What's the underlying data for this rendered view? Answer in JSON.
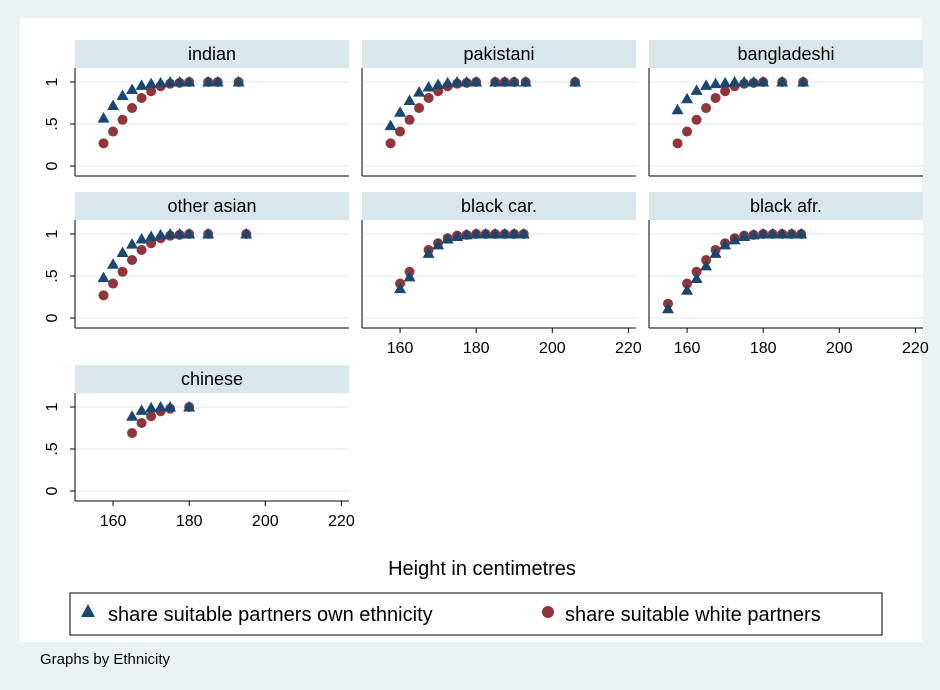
{
  "figure": {
    "x_axis_title": "Height in centimetres",
    "note": "Graphs by Ethnicity"
  },
  "colors": {
    "background": "#eaf2f3",
    "panel_header": "#d9e6eb",
    "own_ethnicity": "#1a476f",
    "white_partners": "#90353b",
    "grid": "#eaf2f3"
  },
  "chart_data": {
    "type": "scatter",
    "facet_by": "Ethnicity",
    "xlim": [
      150,
      222
    ],
    "ylim": [
      0,
      1
    ],
    "x_ticks": [
      160,
      180,
      200,
      220
    ],
    "y_ticks": [
      0,
      0.5,
      1
    ],
    "y_tick_labels": [
      "0",
      ".5",
      "1"
    ],
    "xlabel": "Height in centimetres",
    "ylabel": "",
    "grid": true,
    "legend": {
      "placement": "bottom",
      "entries": [
        {
          "key": "own",
          "label": "share suitable partners own ethnicity",
          "marker": "triangle"
        },
        {
          "key": "white",
          "label": "share suitable white partners",
          "marker": "circle"
        }
      ]
    },
    "panels": [
      {
        "title": "indian",
        "own": [
          [
            157.5,
            0.57
          ],
          [
            160,
            0.72
          ],
          [
            162.5,
            0.84
          ],
          [
            165,
            0.91
          ],
          [
            167.5,
            0.96
          ],
          [
            170,
            0.98
          ],
          [
            172.5,
            0.99
          ],
          [
            175,
            1
          ],
          [
            177.5,
            1
          ],
          [
            180,
            1
          ],
          [
            185,
            1
          ],
          [
            187.5,
            1
          ],
          [
            193,
            1
          ]
        ],
        "white": [
          [
            157.5,
            0.27
          ],
          [
            160,
            0.41
          ],
          [
            162.5,
            0.55
          ],
          [
            165,
            0.69
          ],
          [
            167.5,
            0.81
          ],
          [
            170,
            0.89
          ],
          [
            172.5,
            0.95
          ],
          [
            175,
            0.98
          ],
          [
            177.5,
            0.99
          ],
          [
            180,
            1
          ],
          [
            185,
            1
          ],
          [
            187.5,
            1
          ],
          [
            193,
            1
          ]
        ]
      },
      {
        "title": "pakistani",
        "own": [
          [
            157.5,
            0.48
          ],
          [
            160,
            0.64
          ],
          [
            162.5,
            0.78
          ],
          [
            165,
            0.88
          ],
          [
            167.5,
            0.94
          ],
          [
            170,
            0.97
          ],
          [
            172.5,
            0.99
          ],
          [
            175,
            1
          ],
          [
            177.5,
            1
          ],
          [
            180,
            1
          ],
          [
            185,
            1
          ],
          [
            187.5,
            1
          ],
          [
            190,
            1
          ],
          [
            193,
            1
          ],
          [
            206,
            1
          ]
        ],
        "white": [
          [
            157.5,
            0.27
          ],
          [
            160,
            0.41
          ],
          [
            162.5,
            0.55
          ],
          [
            165,
            0.69
          ],
          [
            167.5,
            0.81
          ],
          [
            170,
            0.89
          ],
          [
            172.5,
            0.95
          ],
          [
            175,
            0.98
          ],
          [
            177.5,
            0.99
          ],
          [
            180,
            1
          ],
          [
            185,
            1
          ],
          [
            187.5,
            1
          ],
          [
            190,
            1
          ],
          [
            193,
            1
          ],
          [
            206,
            1
          ]
        ]
      },
      {
        "title": "bangladeshi",
        "own": [
          [
            157.5,
            0.67
          ],
          [
            160,
            0.8
          ],
          [
            162.5,
            0.9
          ],
          [
            165,
            0.96
          ],
          [
            167.5,
            0.98
          ],
          [
            170,
            0.99
          ],
          [
            172.5,
            1
          ],
          [
            175,
            1
          ],
          [
            177.5,
            1
          ],
          [
            180,
            1
          ],
          [
            185,
            1
          ],
          [
            190.5,
            1
          ]
        ],
        "white": [
          [
            157.5,
            0.27
          ],
          [
            160,
            0.41
          ],
          [
            162.5,
            0.55
          ],
          [
            165,
            0.69
          ],
          [
            167.5,
            0.81
          ],
          [
            170,
            0.89
          ],
          [
            172.5,
            0.95
          ],
          [
            175,
            0.98
          ],
          [
            177.5,
            0.99
          ],
          [
            180,
            1
          ],
          [
            185,
            1
          ],
          [
            190.5,
            1
          ]
        ]
      },
      {
        "title": "other asian",
        "own": [
          [
            157.5,
            0.48
          ],
          [
            160,
            0.64
          ],
          [
            162.5,
            0.78
          ],
          [
            165,
            0.88
          ],
          [
            167.5,
            0.94
          ],
          [
            170,
            0.97
          ],
          [
            172.5,
            0.99
          ],
          [
            175,
            1
          ],
          [
            177.5,
            1
          ],
          [
            180,
            1
          ],
          [
            185,
            1
          ],
          [
            195,
            1
          ]
        ],
        "white": [
          [
            157.5,
            0.27
          ],
          [
            160,
            0.41
          ],
          [
            162.5,
            0.55
          ],
          [
            165,
            0.69
          ],
          [
            167.5,
            0.81
          ],
          [
            170,
            0.89
          ],
          [
            172.5,
            0.95
          ],
          [
            175,
            0.98
          ],
          [
            177.5,
            0.99
          ],
          [
            180,
            1
          ],
          [
            185,
            1
          ],
          [
            195,
            1
          ]
        ]
      },
      {
        "title": "black car.",
        "own": [
          [
            160,
            0.35
          ],
          [
            162.5,
            0.49
          ],
          [
            167.5,
            0.77
          ],
          [
            170,
            0.87
          ],
          [
            172.5,
            0.94
          ],
          [
            175,
            0.97
          ],
          [
            177.5,
            0.99
          ],
          [
            180,
            1
          ],
          [
            182.5,
            1
          ],
          [
            185,
            1
          ],
          [
            187.5,
            1
          ],
          [
            190,
            1
          ],
          [
            192.5,
            1
          ]
        ],
        "white": [
          [
            160,
            0.41
          ],
          [
            162.5,
            0.55
          ],
          [
            167.5,
            0.81
          ],
          [
            170,
            0.89
          ],
          [
            172.5,
            0.95
          ],
          [
            175,
            0.98
          ],
          [
            177.5,
            0.99
          ],
          [
            180,
            1
          ],
          [
            182.5,
            1
          ],
          [
            185,
            1
          ],
          [
            187.5,
            1
          ],
          [
            190,
            1
          ],
          [
            192.5,
            1
          ]
        ]
      },
      {
        "title": "black afr.",
        "own": [
          [
            155,
            0.11
          ],
          [
            160,
            0.33
          ],
          [
            162.5,
            0.47
          ],
          [
            165,
            0.62
          ],
          [
            167.5,
            0.77
          ],
          [
            170,
            0.87
          ],
          [
            172.5,
            0.93
          ],
          [
            175,
            0.97
          ],
          [
            177.5,
            0.99
          ],
          [
            180,
            1
          ],
          [
            182.5,
            1
          ],
          [
            185,
            1
          ],
          [
            187.5,
            1
          ],
          [
            190,
            1
          ]
        ],
        "white": [
          [
            155,
            0.17
          ],
          [
            160,
            0.41
          ],
          [
            162.5,
            0.55
          ],
          [
            165,
            0.69
          ],
          [
            167.5,
            0.81
          ],
          [
            170,
            0.89
          ],
          [
            172.5,
            0.95
          ],
          [
            175,
            0.98
          ],
          [
            177.5,
            0.99
          ],
          [
            180,
            1
          ],
          [
            182.5,
            1
          ],
          [
            185,
            1
          ],
          [
            187.5,
            1
          ],
          [
            190,
            1
          ]
        ]
      },
      {
        "title": "chinese",
        "own": [
          [
            165,
            0.89
          ],
          [
            167.5,
            0.96
          ],
          [
            170,
            0.99
          ],
          [
            172.5,
            1
          ],
          [
            175,
            1
          ],
          [
            180,
            1
          ]
        ],
        "white": [
          [
            165,
            0.69
          ],
          [
            167.5,
            0.81
          ],
          [
            170,
            0.89
          ],
          [
            172.5,
            0.95
          ],
          [
            175,
            0.98
          ],
          [
            180,
            1
          ]
        ]
      }
    ]
  }
}
